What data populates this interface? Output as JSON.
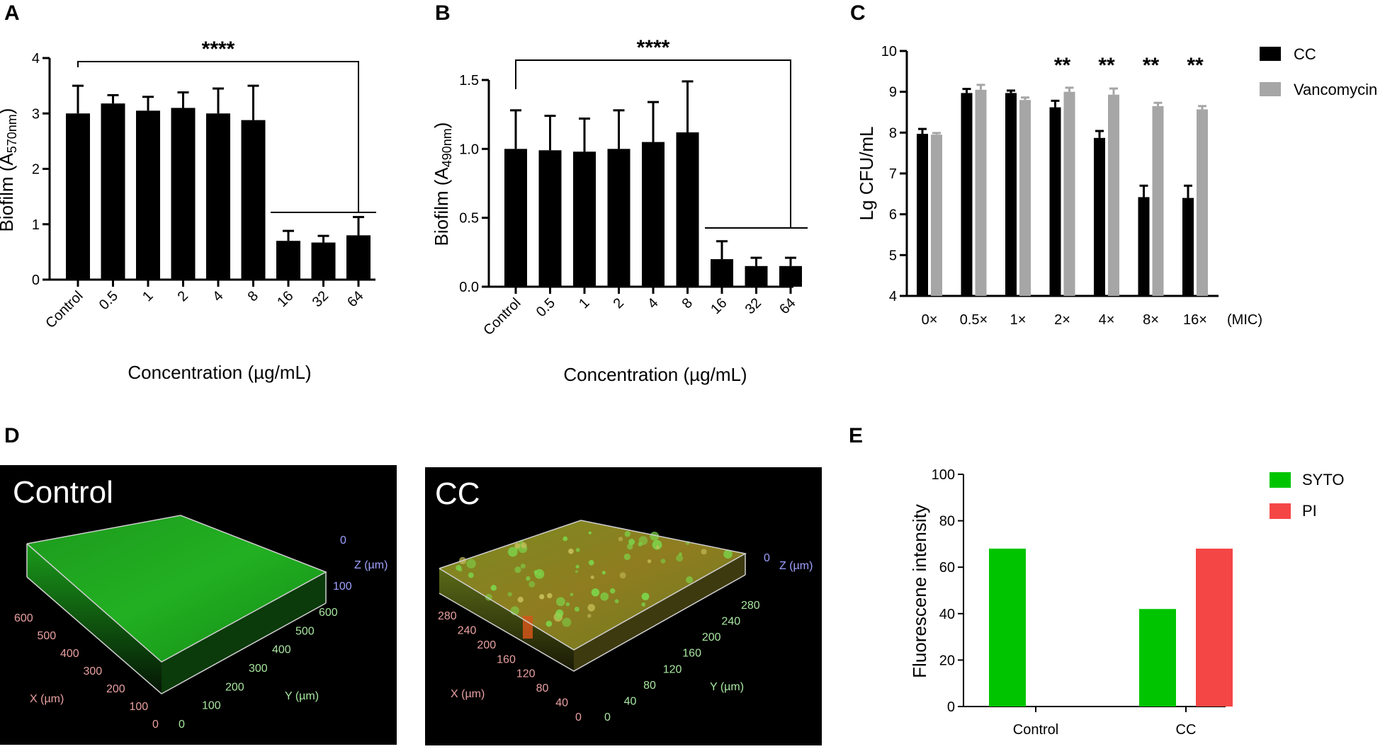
{
  "panel_labels": {
    "A": "A",
    "B": "B",
    "C": "C",
    "D": "D",
    "E": "E"
  },
  "chart_data": [
    {
      "id": "A",
      "type": "bar",
      "categories": [
        "Control",
        "0.5",
        "1",
        "2",
        "4",
        "8",
        "16",
        "32",
        "64"
      ],
      "values": [
        3.0,
        3.18,
        3.05,
        3.1,
        3.0,
        2.88,
        0.7,
        0.67,
        0.8
      ],
      "errors": [
        0.5,
        0.15,
        0.25,
        0.28,
        0.45,
        0.62,
        0.18,
        0.12,
        0.33
      ],
      "ylim": [
        0,
        4
      ],
      "yticks": [
        "0",
        "1",
        "2",
        "3",
        "4"
      ],
      "ylabel_main": "Biofilm (A",
      "ylabel_sub": "570nm",
      "ylabel_end": ")",
      "xlabel": "Concentration (µg/mL)",
      "significance": "****",
      "color": "#000000"
    },
    {
      "id": "B",
      "type": "bar",
      "categories": [
        "Control",
        "0.5",
        "1",
        "2",
        "4",
        "8",
        "16",
        "32",
        "64"
      ],
      "values": [
        1.0,
        0.99,
        0.98,
        1.0,
        1.05,
        1.12,
        0.2,
        0.15,
        0.15
      ],
      "errors": [
        0.28,
        0.25,
        0.24,
        0.28,
        0.29,
        0.37,
        0.13,
        0.06,
        0.06
      ],
      "ylim": [
        0,
        1.5
      ],
      "yticks": [
        "0.0",
        "0.5",
        "1.0",
        "1.5"
      ],
      "ylabel_main": "Biofilm (A",
      "ylabel_sub": "490nm",
      "ylabel_end": ")",
      "xlabel": "Concentration (µg/mL)",
      "significance": "****",
      "color": "#000000"
    },
    {
      "id": "C",
      "type": "bar",
      "categories": [
        "0×",
        "0.5×",
        "1×",
        "2×",
        "4×",
        "8×",
        "16×"
      ],
      "series": [
        {
          "name": "CC",
          "values": [
            7.97,
            8.97,
            8.97,
            8.62,
            7.87,
            6.42,
            6.4
          ],
          "errors": [
            0.12,
            0.1,
            0.06,
            0.16,
            0.17,
            0.28,
            0.3
          ],
          "color": "#000000"
        },
        {
          "name": "Vancomycin",
          "values": [
            7.95,
            9.05,
            8.8,
            9.0,
            8.93,
            8.65,
            8.57
          ],
          "errors": [
            0.04,
            0.12,
            0.06,
            0.1,
            0.15,
            0.08,
            0.08
          ],
          "color": "#a6a6a6"
        }
      ],
      "ylim": [
        4,
        10
      ],
      "yticks": [
        "4",
        "5",
        "6",
        "7",
        "8",
        "9",
        "10"
      ],
      "ylabel": "Lg CFU/mL",
      "xlabel_suffix": "(MIC)",
      "significance": [
        "",
        "",
        "",
        "**",
        "**",
        "**",
        "**"
      ]
    },
    {
      "id": "E",
      "type": "bar",
      "categories": [
        "Control",
        "CC"
      ],
      "series": [
        {
          "name": "SYTO",
          "values": [
            68,
            42
          ],
          "color": "#00c400"
        },
        {
          "name": "PI",
          "values": [
            0,
            68
          ],
          "color": "#f54646"
        }
      ],
      "ylim": [
        0,
        100
      ],
      "yticks": [
        "0",
        "20",
        "40",
        "60",
        "80",
        "100"
      ],
      "ylabel": "Fluorescene intensity"
    }
  ],
  "micrographs": [
    {
      "title": "Control",
      "z_ticks": [
        "0",
        "100"
      ],
      "z_label": "Z (µm)",
      "x_ticks": [
        "600",
        "500",
        "400",
        "300",
        "200",
        "100",
        "0"
      ],
      "x_label": "X (µm)",
      "y_ticks": [
        "0",
        "100",
        "200",
        "300",
        "400",
        "500",
        "600"
      ],
      "y_label": "Y (µm)"
    },
    {
      "title": "CC",
      "z_ticks": [
        "0"
      ],
      "z_label": "Z (µm)",
      "x_ticks": [
        "280",
        "240",
        "200",
        "160",
        "120",
        "80",
        "40",
        "0"
      ],
      "x_label": "X (µm)",
      "y_ticks": [
        "0",
        "40",
        "80",
        "120",
        "160",
        "200",
        "240",
        "280"
      ],
      "y_label": "Y (µm)"
    }
  ]
}
